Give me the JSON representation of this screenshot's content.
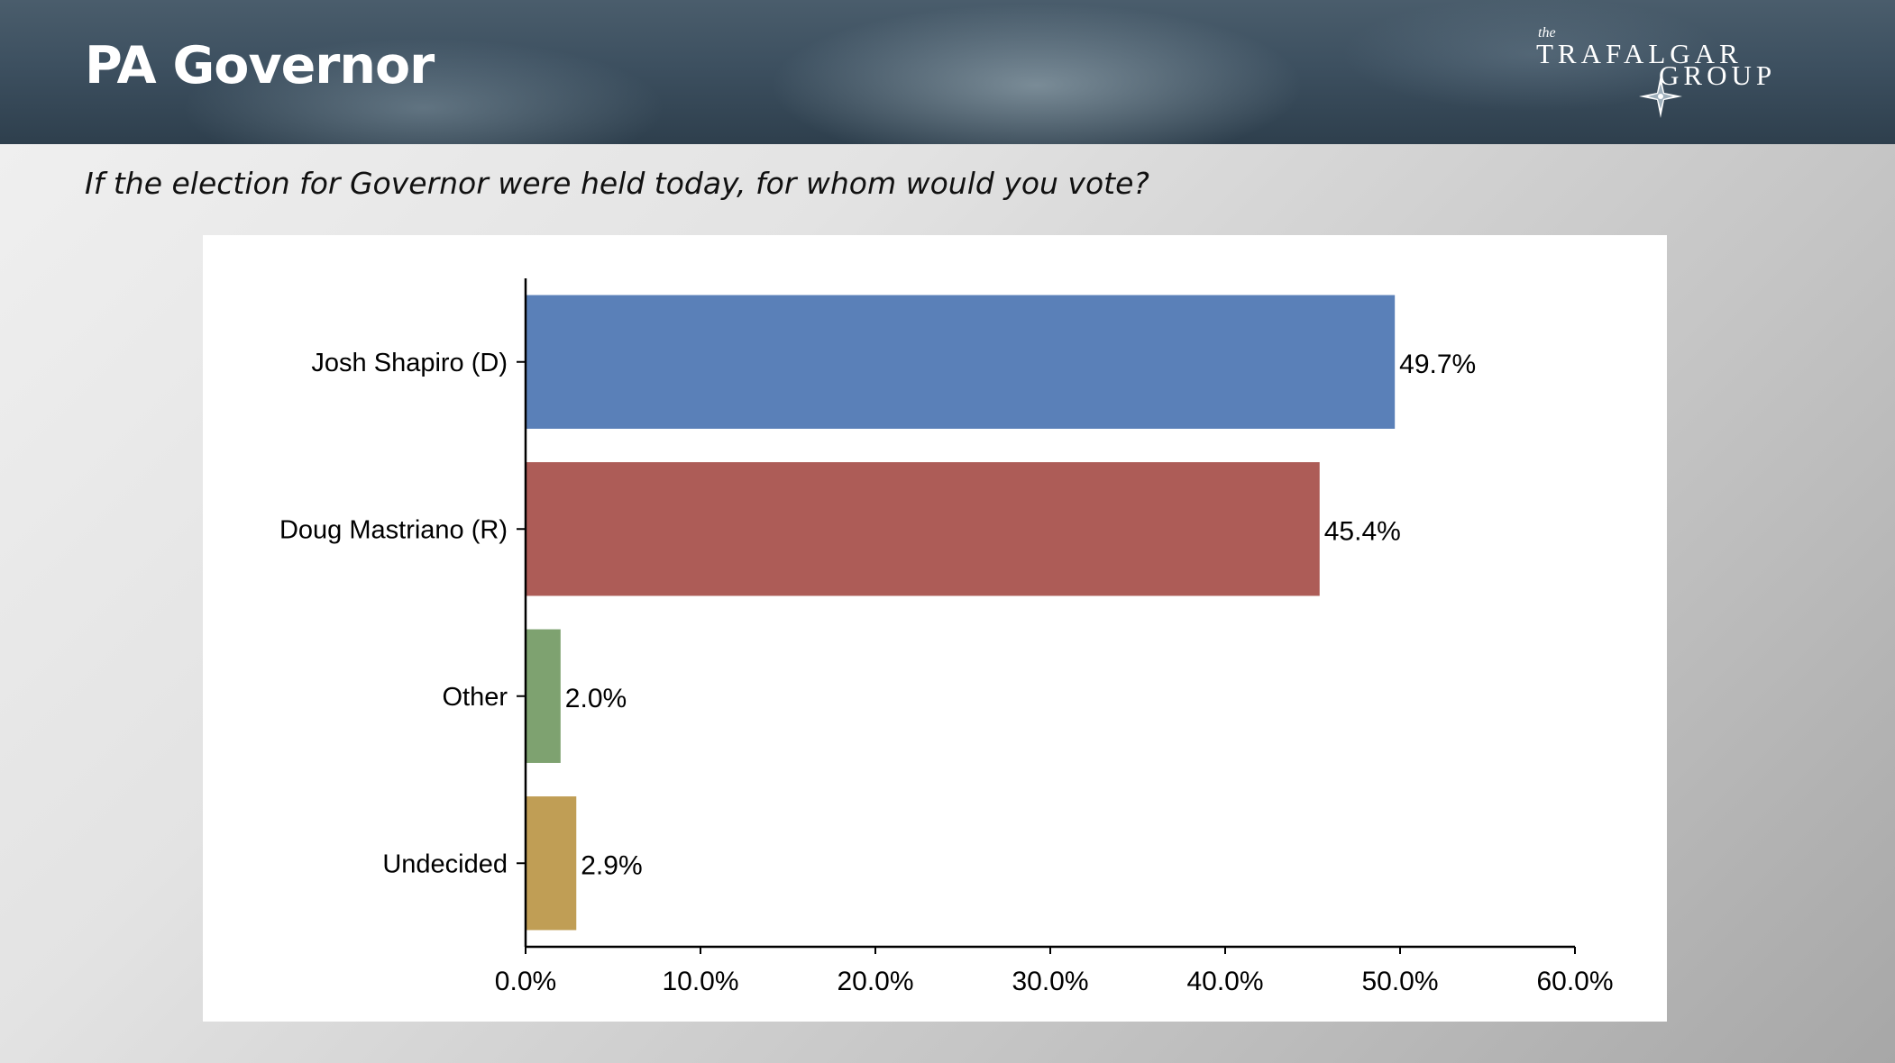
{
  "header": {
    "title": "PA Governor",
    "logo": {
      "small": "the",
      "line1": "TRAFALGAR",
      "line2": "GROUP"
    }
  },
  "question": "If the election for Governor were held today, for whom would you vote?",
  "chart_data": {
    "type": "bar",
    "orientation": "horizontal",
    "categories": [
      "Josh Shapiro (D)",
      "Doug Mastriano (R)",
      "Other",
      "Undecided"
    ],
    "values": [
      49.7,
      45.4,
      2.0,
      2.9
    ],
    "value_labels": [
      "49.7%",
      "45.4%",
      "2.0%",
      "2.9%"
    ],
    "colors": [
      "#5a80b8",
      "#ad5c57",
      "#7ea270",
      "#c09e55"
    ],
    "xlim": [
      0,
      60
    ],
    "xticks": [
      0,
      10,
      20,
      30,
      40,
      50,
      60
    ],
    "xtick_labels": [
      "0.0%",
      "10.0%",
      "20.0%",
      "30.0%",
      "40.0%",
      "50.0%",
      "60.0%"
    ],
    "title": "",
    "xlabel": "",
    "ylabel": "",
    "grid": false,
    "legend": false
  }
}
